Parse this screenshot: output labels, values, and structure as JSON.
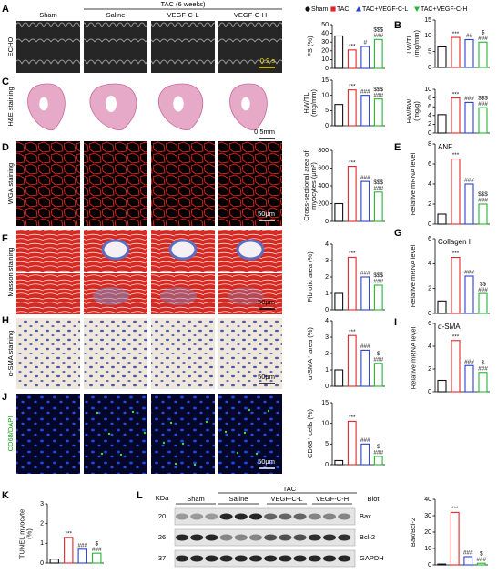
{
  "panel_labels": [
    "A",
    "B",
    "C",
    "D",
    "E",
    "F",
    "G",
    "H",
    "I",
    "J",
    "K",
    "L"
  ],
  "legend": [
    {
      "name": "Sham",
      "color": "#111111"
    },
    {
      "name": "TAC",
      "color": "#e3262b"
    },
    {
      "name": "TAC+VEGF-C-L",
      "color": "#2b3fd3"
    },
    {
      "name": "TAC+VEGF-C-H",
      "color": "#25b531"
    }
  ],
  "image_grid": {
    "group_header": "TAC (6 weeks)",
    "columns": [
      "Sham",
      "Saline",
      "VEGF-C-L",
      "VEGF-C-H"
    ],
    "rows": [
      "ECHO",
      "H&E staining",
      "WGA staining",
      "Masson staining",
      "α-SMA staining",
      "CD68/DAPI"
    ],
    "scale_bars": [
      "0.2 s",
      "0.5mm",
      "50μm",
      "50μm",
      "50μm",
      "50μm"
    ]
  },
  "blot": {
    "unit": "KDa",
    "group_header": "TAC",
    "groups": [
      "Sham",
      "Saline",
      "VEGF-C-L",
      "VEGF-C-H"
    ],
    "column_label": "Blot",
    "proteins": [
      {
        "name": "Bax",
        "kda": "20"
      },
      {
        "name": "Bcl-2",
        "kda": "26"
      },
      {
        "name": "GAPDH",
        "kda": "37"
      }
    ]
  },
  "chart_data": [
    {
      "type": "bar",
      "ylabel": "FS (%)",
      "values": [
        37,
        21,
        25,
        33
      ],
      "ylim": [
        0,
        50
      ],
      "yticks": [
        0,
        10,
        20,
        30,
        40,
        50
      ],
      "annotations": [
        [],
        [
          "***"
        ],
        [
          "#"
        ],
        [
          "$$$",
          "###"
        ]
      ]
    },
    {
      "type": "bar",
      "ylabel": "LW/TL (mg/mm)",
      "values": [
        6.5,
        9.5,
        8.8,
        8
      ],
      "ylim": [
        0,
        15
      ],
      "yticks": [
        0,
        5,
        10,
        15
      ],
      "annotations": [
        [],
        [
          "***"
        ],
        [
          "##"
        ],
        [
          "$",
          "###"
        ]
      ]
    },
    {
      "type": "bar",
      "ylabel": "HW/TL (mg/mm)",
      "values": [
        7,
        11.8,
        10,
        8.8
      ],
      "ylim": [
        0,
        15
      ],
      "yticks": [
        0,
        5,
        10,
        15
      ],
      "annotations": [
        [],
        [
          "***"
        ],
        [
          "###"
        ],
        [
          "$$$",
          "###"
        ]
      ]
    },
    {
      "type": "bar",
      "ylabel": "HW/BW (mg/g)",
      "values": [
        4.2,
        8,
        7,
        5.8
      ],
      "ylim": [
        0,
        10
      ],
      "yticks": [
        0,
        2,
        4,
        6,
        8,
        10
      ],
      "annotations": [
        [],
        [
          "***"
        ],
        [
          "###"
        ],
        [
          "$$$",
          "###"
        ]
      ]
    },
    {
      "type": "bar",
      "ylabel": "Cross-sectional area of myocytes (μm²)",
      "values": [
        200,
        620,
        450,
        330
      ],
      "ylim": [
        0,
        800
      ],
      "yticks": [
        0,
        200,
        400,
        600,
        800
      ],
      "annotations": [
        [],
        [
          "***"
        ],
        [
          "###"
        ],
        [
          "$$$",
          "###"
        ]
      ]
    },
    {
      "type": "bar",
      "title": "ANF",
      "ylabel": "Relative mRNA level",
      "values": [
        1,
        6.5,
        4,
        2
      ],
      "ylim": [
        0,
        8
      ],
      "yticks": [
        0,
        2,
        4,
        6,
        8
      ],
      "annotations": [
        [],
        [
          "***"
        ],
        [
          "###"
        ],
        [
          "$$$",
          "###"
        ]
      ]
    },
    {
      "type": "bar",
      "ylabel": "Fibrotic area (%)",
      "values": [
        1,
        3.2,
        2,
        1.5
      ],
      "ylim": [
        0,
        4
      ],
      "yticks": [
        0,
        1,
        2,
        3,
        4
      ],
      "annotations": [
        [],
        [
          "***"
        ],
        [
          "###"
        ],
        [
          "$$$",
          "###"
        ]
      ]
    },
    {
      "type": "bar",
      "title": "Collagen I",
      "ylabel": "Relative mRNA level",
      "values": [
        1,
        4.5,
        3,
        1.6
      ],
      "ylim": [
        0,
        6
      ],
      "yticks": [
        0,
        2,
        4,
        6
      ],
      "annotations": [
        [],
        [
          "***"
        ],
        [
          "###"
        ],
        [
          "$$",
          "###"
        ]
      ]
    },
    {
      "type": "bar",
      "ylabel": "α-SMA⁺ area (%)",
      "values": [
        1,
        3.1,
        2.2,
        1.4
      ],
      "ylim": [
        0,
        4
      ],
      "yticks": [
        0,
        1,
        2,
        3,
        4
      ],
      "annotations": [
        [],
        [
          "***"
        ],
        [
          "###"
        ],
        [
          "$",
          "###"
        ]
      ]
    },
    {
      "type": "bar",
      "title": "α-SMA",
      "ylabel": "Relative mRNA level",
      "values": [
        1,
        4.5,
        2.3,
        1.7
      ],
      "ylim": [
        0,
        6
      ],
      "yticks": [
        0,
        2,
        4,
        6
      ],
      "annotations": [
        [],
        [
          "***"
        ],
        [
          "###"
        ],
        [
          "$",
          "###"
        ]
      ]
    },
    {
      "type": "bar",
      "ylabel": "CD68⁺ cells (%)",
      "values": [
        1,
        10.5,
        5,
        2
      ],
      "ylim": [
        0,
        15
      ],
      "yticks": [
        0,
        5,
        10,
        15
      ],
      "annotations": [
        [],
        [
          "***"
        ],
        [
          "###"
        ],
        [
          "$",
          "###"
        ]
      ]
    },
    {
      "type": "bar",
      "ylabel": "TUNEL myocyte (%)",
      "values": [
        0.2,
        1.3,
        0.7,
        0.5
      ],
      "ylim": [
        0,
        3
      ],
      "yticks": [
        0,
        1,
        2,
        3
      ],
      "annotations": [
        [],
        [
          "***"
        ],
        [
          "###"
        ],
        [
          "$",
          "###"
        ]
      ]
    },
    {
      "type": "bar",
      "ylabel": "Bax/Bcl-2",
      "values": [
        0.5,
        32,
        5,
        1
      ],
      "ylim": [
        0,
        40
      ],
      "yticks": [
        0,
        10,
        20,
        30,
        40
      ],
      "annotations": [
        [],
        [
          "***"
        ],
        [
          "###"
        ],
        [
          "$",
          "###"
        ]
      ]
    }
  ]
}
